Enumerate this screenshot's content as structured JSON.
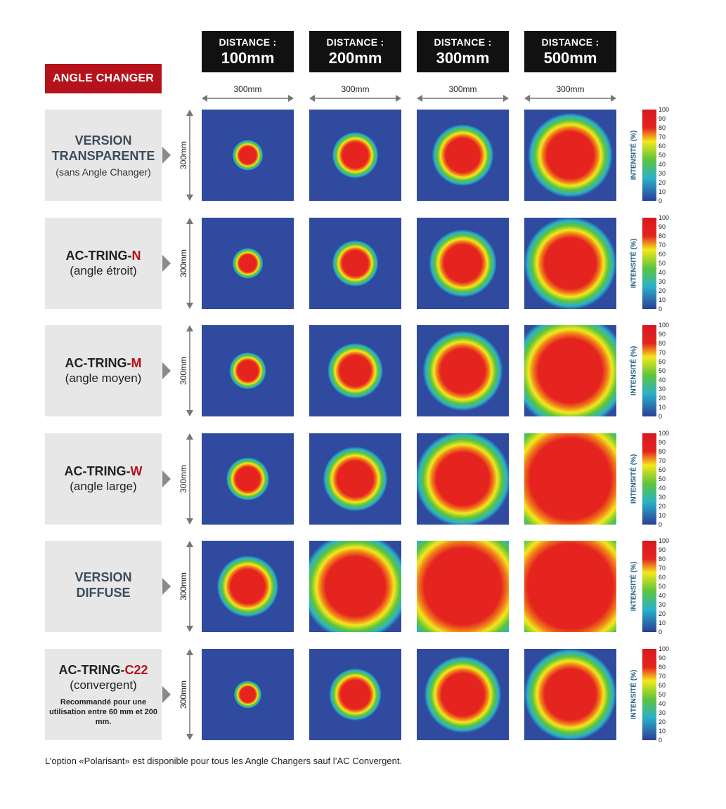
{
  "badge": "ANGLE CHANGER",
  "columns": [
    {
      "line1": "DISTANCE :",
      "line2": "100mm",
      "width_label": "300mm"
    },
    {
      "line1": "DISTANCE :",
      "line2": "200mm",
      "width_label": "300mm"
    },
    {
      "line1": "DISTANCE :",
      "line2": "300mm",
      "width_label": "300mm"
    },
    {
      "line1": "DISTANCE :",
      "line2": "500mm",
      "width_label": "300mm"
    }
  ],
  "height_label": "300mm",
  "scale": {
    "label": "INTENSITÉ (%)",
    "ticks": [
      "100",
      "90",
      "80",
      "70",
      "60",
      "50",
      "40",
      "30",
      "20",
      "10",
      "0"
    ]
  },
  "rows": [
    {
      "style": "grey",
      "title_1": "VERSION",
      "title_2": "TRANSPARENTE",
      "accent": "",
      "sub": "(sans Angle Changer)",
      "note": "",
      "spots": [
        [
          0.2
        ],
        [
          0.3
        ],
        [
          0.4
        ],
        [
          0.55
        ]
      ]
    },
    {
      "style": "black",
      "title_1": "AC-TRING-",
      "title_2": "",
      "accent": "N",
      "sub": "(angle étroit)",
      "note": "",
      "spots": [
        [
          0.2
        ],
        [
          0.3
        ],
        [
          0.44
        ],
        [
          0.6
        ]
      ]
    },
    {
      "style": "black",
      "title_1": "AC-TRING-",
      "title_2": "",
      "accent": "M",
      "sub": "(angle moyen)",
      "note": "",
      "spots": [
        [
          0.24
        ],
        [
          0.36
        ],
        [
          0.52
        ],
        [
          0.75
        ]
      ]
    },
    {
      "style": "black",
      "title_1": "AC-TRING-",
      "title_2": "",
      "accent": "W",
      "sub": "(angle large)",
      "note": "",
      "spots": [
        [
          0.28
        ],
        [
          0.42
        ],
        [
          0.62
        ],
        [
          0.95
        ]
      ]
    },
    {
      "style": "grey",
      "title_1": "VERSION",
      "title_2": "DIFFUSE",
      "accent": "",
      "sub": "",
      "note": "",
      "spots": [
        [
          0.4
        ],
        [
          0.7
        ],
        [
          0.9
        ],
        [
          1.0
        ]
      ]
    },
    {
      "style": "black",
      "title_1": "AC-TRING-",
      "title_2": "",
      "accent": "C22",
      "sub": "(convergent)",
      "note": "Recommandé pour une utilisation entre 60 mm et 200 mm.",
      "spots": [
        [
          0.18
        ],
        [
          0.34
        ],
        [
          0.5
        ],
        [
          0.6
        ]
      ]
    }
  ],
  "footnote": "L’option «Polarisant» est disponible pour tous les Angle Changers sauf l’AC Convergent.",
  "colors": {
    "accent": "#b5121b",
    "header_bg": "#111111",
    "label_bg": "#e7e7e7",
    "map_bg": "#2f4a9e"
  }
}
